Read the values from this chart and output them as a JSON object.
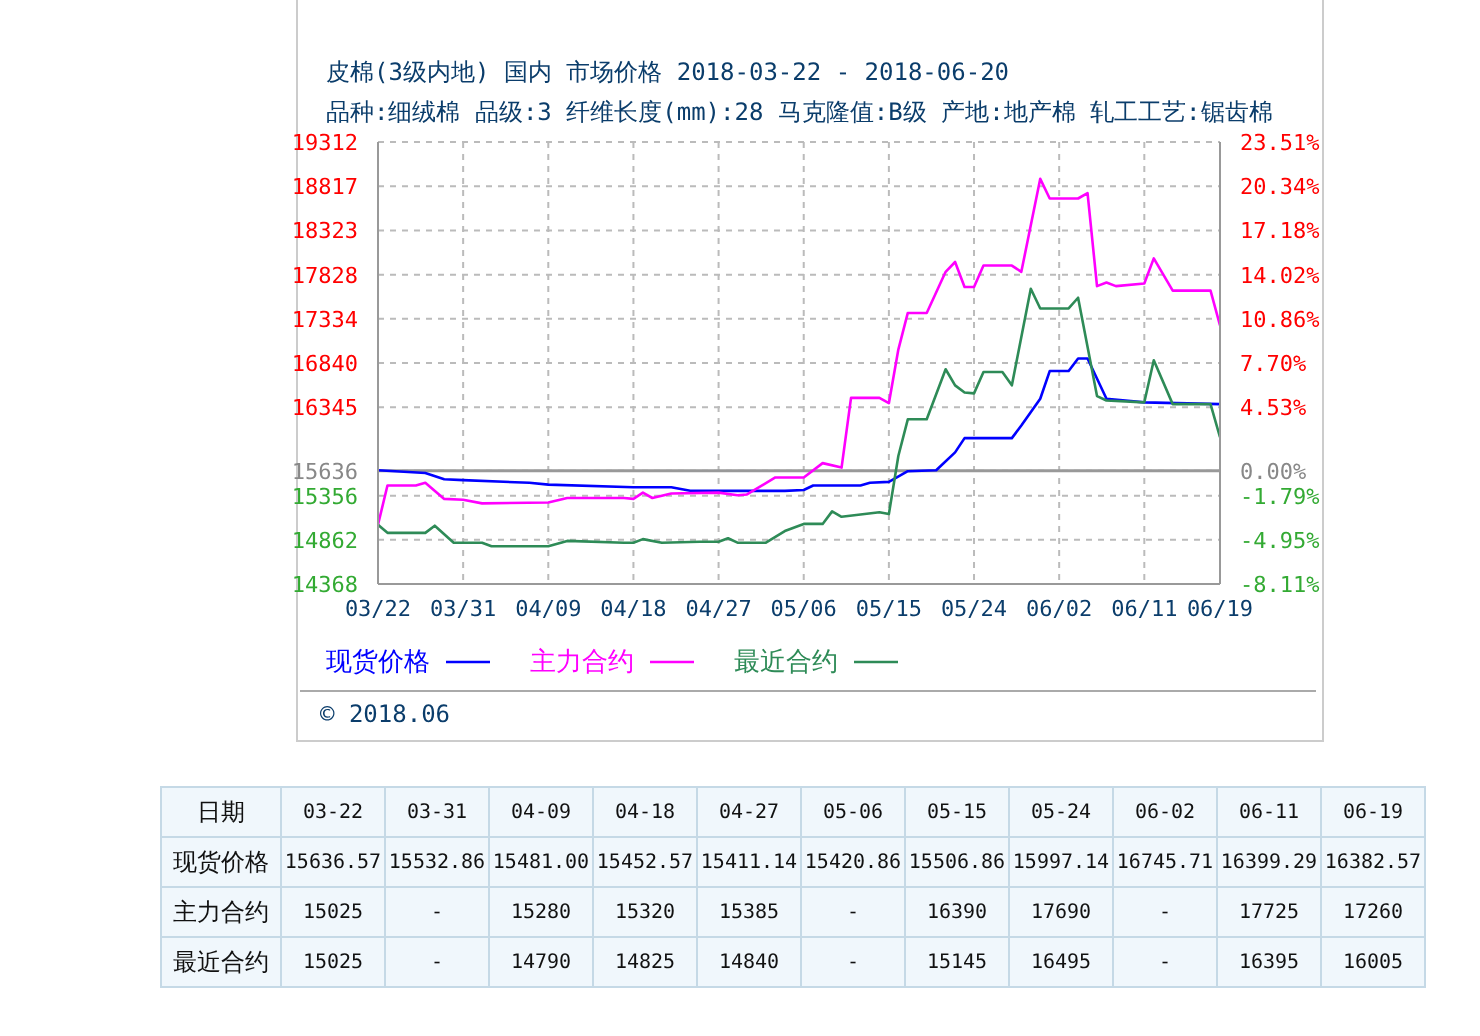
{
  "chart_data": [
    {
      "type": "line",
      "title": "皮棉(3级内地) 国内 市场价格 2018-03-22 - 2018-06-20",
      "subtitle": "品种:细绒棉 品级:3 纤维长度(mm):28 马克隆值:B级 产地:地产棉 轧工工艺:锯齿棉",
      "annotations": [
        "© 2018.06"
      ],
      "xlim": [
        "--03-22",
        "--06-19"
      ],
      "xticks": [
        {
          "value": "--03-22",
          "label": "03/22"
        },
        {
          "value": "--03-31",
          "label": "03/31"
        },
        {
          "value": "--04-09",
          "label": "04/09"
        },
        {
          "value": "--04-18",
          "label": "04/18"
        },
        {
          "value": "--04-27",
          "label": "04/27"
        },
        {
          "value": "--05-06",
          "label": "05/06"
        },
        {
          "value": "--05-15",
          "label": "05/15"
        },
        {
          "value": "--05-24",
          "label": "05/24"
        },
        {
          "value": "--06-02",
          "label": "06/02"
        },
        {
          "value": "--06-11",
          "label": "06/11"
        },
        {
          "value": "--06-19",
          "label": "06/19"
        }
      ],
      "ylim": [
        14368,
        19312
      ],
      "yticks": [
        14368,
        14862,
        15356,
        15636,
        16345,
        16840,
        17334,
        17828,
        18323,
        18817,
        19312
      ],
      "y2lim": [
        -8.11,
        23.51
      ],
      "y2ticks": [
        {
          "value": -8.11,
          "label": "-8.11%"
        },
        {
          "value": -4.95,
          "label": "-4.95%"
        },
        {
          "value": -1.79,
          "label": "-1.79%"
        },
        {
          "value": 0,
          "label": "0.00%"
        },
        {
          "value": 4.53,
          "label": "4.53%"
        },
        {
          "value": 7.7,
          "label": "7.70%"
        },
        {
          "value": 10.86,
          "label": "10.86%"
        },
        {
          "value": 14.02,
          "label": "14.02%"
        },
        {
          "value": 17.18,
          "label": "17.18%"
        },
        {
          "value": 20.34,
          "label": "20.34%"
        },
        {
          "value": 23.51,
          "label": "23.51%"
        }
      ],
      "ref_lines": [
        {
          "axis": "y",
          "value": 15636,
          "color": "#999999"
        }
      ],
      "grid": true,
      "legend": "bottom",
      "marker": "none",
      "line_style": "solid",
      "series": [
        {
          "name": "现货价格",
          "color": "#0000ff",
          "x": [
            "--03-22",
            "--03-27",
            "--03-29",
            "--03-31",
            "--04-07",
            "--04-09",
            "--04-18",
            "--04-22",
            "--04-24",
            "--04-27",
            "--05-04",
            "--05-06",
            "--05-07",
            "--05-12",
            "--05-13",
            "--05-15",
            "--05-17",
            "--05-20",
            "--05-22",
            "--05-23",
            "--05-24",
            "--05-28",
            "--05-29",
            "--05-31",
            "--06-01",
            "--06-02",
            "--06-03",
            "--06-04",
            "--06-05",
            "--06-07",
            "--06-11",
            "--06-19"
          ],
          "values": [
            15640,
            15610,
            15540,
            15530,
            15500,
            15480,
            15450,
            15450,
            15410,
            15410,
            15410,
            15420,
            15470,
            15470,
            15500,
            15510,
            15630,
            15640,
            15840,
            16000,
            16000,
            16000,
            16140,
            16440,
            16750,
            16750,
            16750,
            16890,
            16890,
            16440,
            16400,
            16380
          ]
        },
        {
          "name": "主力合约",
          "color": "#ff00ff",
          "x": [
            "--03-22",
            "--03-23",
            "--03-26",
            "--03-27",
            "--03-29",
            "--03-31",
            "--04-02",
            "--04-09",
            "--04-11",
            "--04-17",
            "--04-18",
            "--04-19",
            "--04-20",
            "--04-22",
            "--04-27",
            "--04-29",
            "--04-30",
            "--05-03",
            "--05-06",
            "--05-08",
            "--05-10",
            "--05-11",
            "--05-14",
            "--05-15",
            "--05-16",
            "--05-17",
            "--05-19",
            "--05-21",
            "--05-22",
            "--05-23",
            "--05-24",
            "--05-25",
            "--05-28",
            "--05-29",
            "--05-31",
            "--06-01",
            "--06-02",
            "--06-04",
            "--06-05",
            "--06-06",
            "--06-07",
            "--06-08",
            "--06-11",
            "--06-12",
            "--06-14",
            "--06-18",
            "--06-19"
          ],
          "values": [
            15030,
            15470,
            15470,
            15500,
            15320,
            15310,
            15270,
            15280,
            15330,
            15330,
            15320,
            15390,
            15330,
            15380,
            15390,
            15360,
            15370,
            15560,
            15560,
            15720,
            15670,
            16450,
            16450,
            16390,
            16990,
            17400,
            17400,
            17860,
            17970,
            17690,
            17690,
            17930,
            17930,
            17860,
            18900,
            18680,
            18680,
            18680,
            18740,
            17700,
            17740,
            17700,
            17730,
            18010,
            17650,
            17650,
            17260
          ]
        },
        {
          "name": "最近合约",
          "color": "#2e8b57",
          "x": [
            "--03-22",
            "--03-23",
            "--03-27",
            "--03-28",
            "--03-30",
            "--03-31",
            "--04-02",
            "--04-03",
            "--04-09",
            "--04-11",
            "--04-17",
            "--04-18",
            "--04-19",
            "--04-21",
            "--04-25",
            "--04-27",
            "--04-28",
            "--04-29",
            "--05-02",
            "--05-04",
            "--05-06",
            "--05-08",
            "--05-09",
            "--05-10",
            "--05-14",
            "--05-15",
            "--05-16",
            "--05-17",
            "--05-19",
            "--05-21",
            "--05-22",
            "--05-23",
            "--05-24",
            "--05-25",
            "--05-27",
            "--05-28",
            "--05-30",
            "--05-31",
            "--06-02",
            "--06-03",
            "--06-04",
            "--06-06",
            "--06-07",
            "--06-11",
            "--06-12",
            "--06-14",
            "--06-18",
            "--06-19"
          ],
          "values": [
            15030,
            14940,
            14940,
            15020,
            14830,
            14830,
            14830,
            14790,
            14790,
            14850,
            14830,
            14830,
            14870,
            14830,
            14840,
            14840,
            14880,
            14830,
            14830,
            14960,
            15040,
            15040,
            15180,
            15120,
            15170,
            15150,
            15800,
            16210,
            16210,
            16770,
            16590,
            16510,
            16500,
            16740,
            16740,
            16590,
            17670,
            17450,
            17450,
            17450,
            17570,
            16470,
            16420,
            16400,
            16870,
            16380,
            16380,
            16010
          ]
        }
      ]
    },
    {
      "type": "other",
      "xlabel": "日期",
      "categories": [
        "03-22",
        "03-31",
        "04-09",
        "04-18",
        "04-27",
        "05-06",
        "05-15",
        "05-24",
        "06-02",
        "06-11",
        "06-19"
      ],
      "series": [
        {
          "name": "现货价格",
          "values": [
            15636.57,
            15532.86,
            15481.0,
            15452.57,
            15411.14,
            15420.86,
            15506.86,
            15997.14,
            16745.71,
            16399.29,
            16382.57
          ],
          "value_labels": [
            "15636.57",
            "15532.86",
            "15481.00",
            "15452.57",
            "15411.14",
            "15420.86",
            "15506.86",
            "15997.14",
            "16745.71",
            "16399.29",
            "16382.57"
          ]
        },
        {
          "name": "主力合约",
          "values": [
            15025,
            null,
            15280,
            15320,
            15385,
            null,
            16390,
            17690,
            null,
            17725,
            17260
          ],
          "value_labels": [
            "15025",
            "-",
            "15280",
            "15320",
            "15385",
            "-",
            "16390",
            "17690",
            "-",
            "17725",
            "17260"
          ]
        },
        {
          "name": "最近合约",
          "values": [
            15025,
            null,
            14790,
            14825,
            14840,
            null,
            15145,
            16495,
            null,
            16395,
            16005
          ],
          "value_labels": [
            "15025",
            "-",
            "14790",
            "14825",
            "14840",
            "-",
            "15145",
            "16495",
            "-",
            "16395",
            "16005"
          ]
        }
      ]
    }
  ]
}
